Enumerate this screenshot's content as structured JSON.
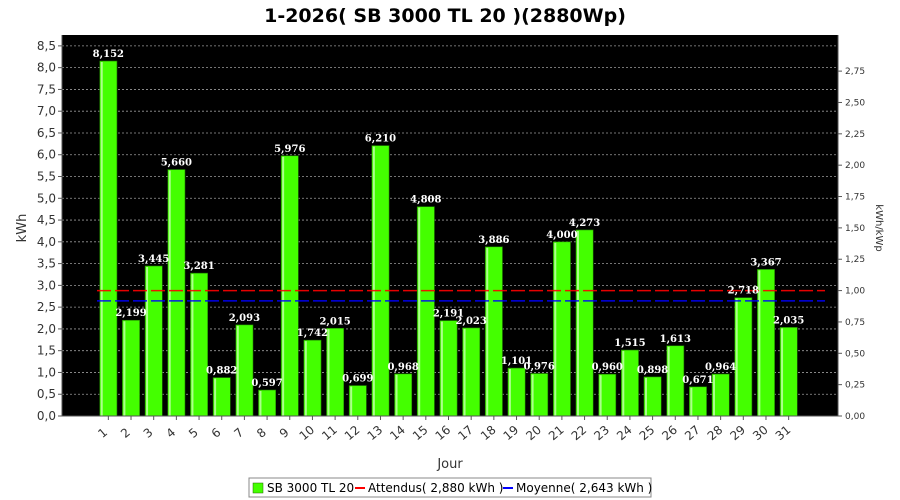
{
  "chart_data": {
    "type": "bar",
    "title": "1-2026( SB 3000 TL 20 )(2880Wp)",
    "xlabel": "Jour",
    "ylabel": "kWh",
    "ylabel_right": "kWh/kWp",
    "ylim": [
      0,
      8.75
    ],
    "ylim_right": [
      0,
      3.038
    ],
    "y_ticks": [
      "0,0",
      "0,5",
      "1,0",
      "1,5",
      "2,0",
      "2,5",
      "3,0",
      "3,5",
      "4,0",
      "4,5",
      "5,0",
      "5,5",
      "6,0",
      "6,5",
      "7,0",
      "7,5",
      "8,0",
      "8,5"
    ],
    "y_ticks_right": [
      "0,00",
      "0,25",
      "0,50",
      "0,75",
      "1,00",
      "1,25",
      "1,50",
      "1,75",
      "2,00",
      "2,25",
      "2,50",
      "2,75"
    ],
    "categories": [
      "1",
      "2",
      "3",
      "4",
      "5",
      "6",
      "7",
      "8",
      "9",
      "10",
      "11",
      "12",
      "13",
      "14",
      "15",
      "16",
      "17",
      "18",
      "19",
      "20",
      "21",
      "22",
      "23",
      "24",
      "25",
      "26",
      "27",
      "28",
      "29",
      "30",
      "31"
    ],
    "values": [
      8.152,
      2.199,
      3.445,
      5.66,
      3.281,
      0.882,
      2.093,
      0.597,
      5.976,
      1.742,
      2.015,
      0.699,
      6.21,
      0.968,
      4.808,
      2.191,
      2.023,
      3.886,
      1.101,
      0.976,
      4.0,
      4.273,
      0.96,
      1.515,
      0.898,
      1.613,
      0.671,
      0.964,
      2.718,
      3.367,
      2.035
    ],
    "value_labels": [
      "8,152",
      "2,199",
      "3,445",
      "5,660",
      "3,281",
      "0,882",
      "2,093",
      "0,597",
      "5,976",
      "1,742",
      "2,015",
      "0,699",
      "6,210",
      "0,968",
      "4,808",
      "2,191",
      "2,023",
      "3,886",
      "1,101",
      "0,976",
      "4,000",
      "4,273",
      "0,960",
      "1,515",
      "0,898",
      "1,613",
      "0,671",
      "0,964",
      "2,718",
      "3,367",
      "2,035"
    ],
    "reference_lines": [
      {
        "name": "Attendus",
        "value": 2.88,
        "color": "#ff0000"
      },
      {
        "name": "Moyenne",
        "value": 2.643,
        "color": "#0000ff"
      }
    ],
    "series_name": "SB 3000 TL 20",
    "bar_color": "#44ff00",
    "plot_background": "#000000",
    "grid": true,
    "legend": {
      "position": "bottom",
      "items": [
        "SB 3000 TL 20",
        "Attendus( 2,880 kWh )",
        "Moyenne( 2,643 kWh )"
      ]
    }
  }
}
